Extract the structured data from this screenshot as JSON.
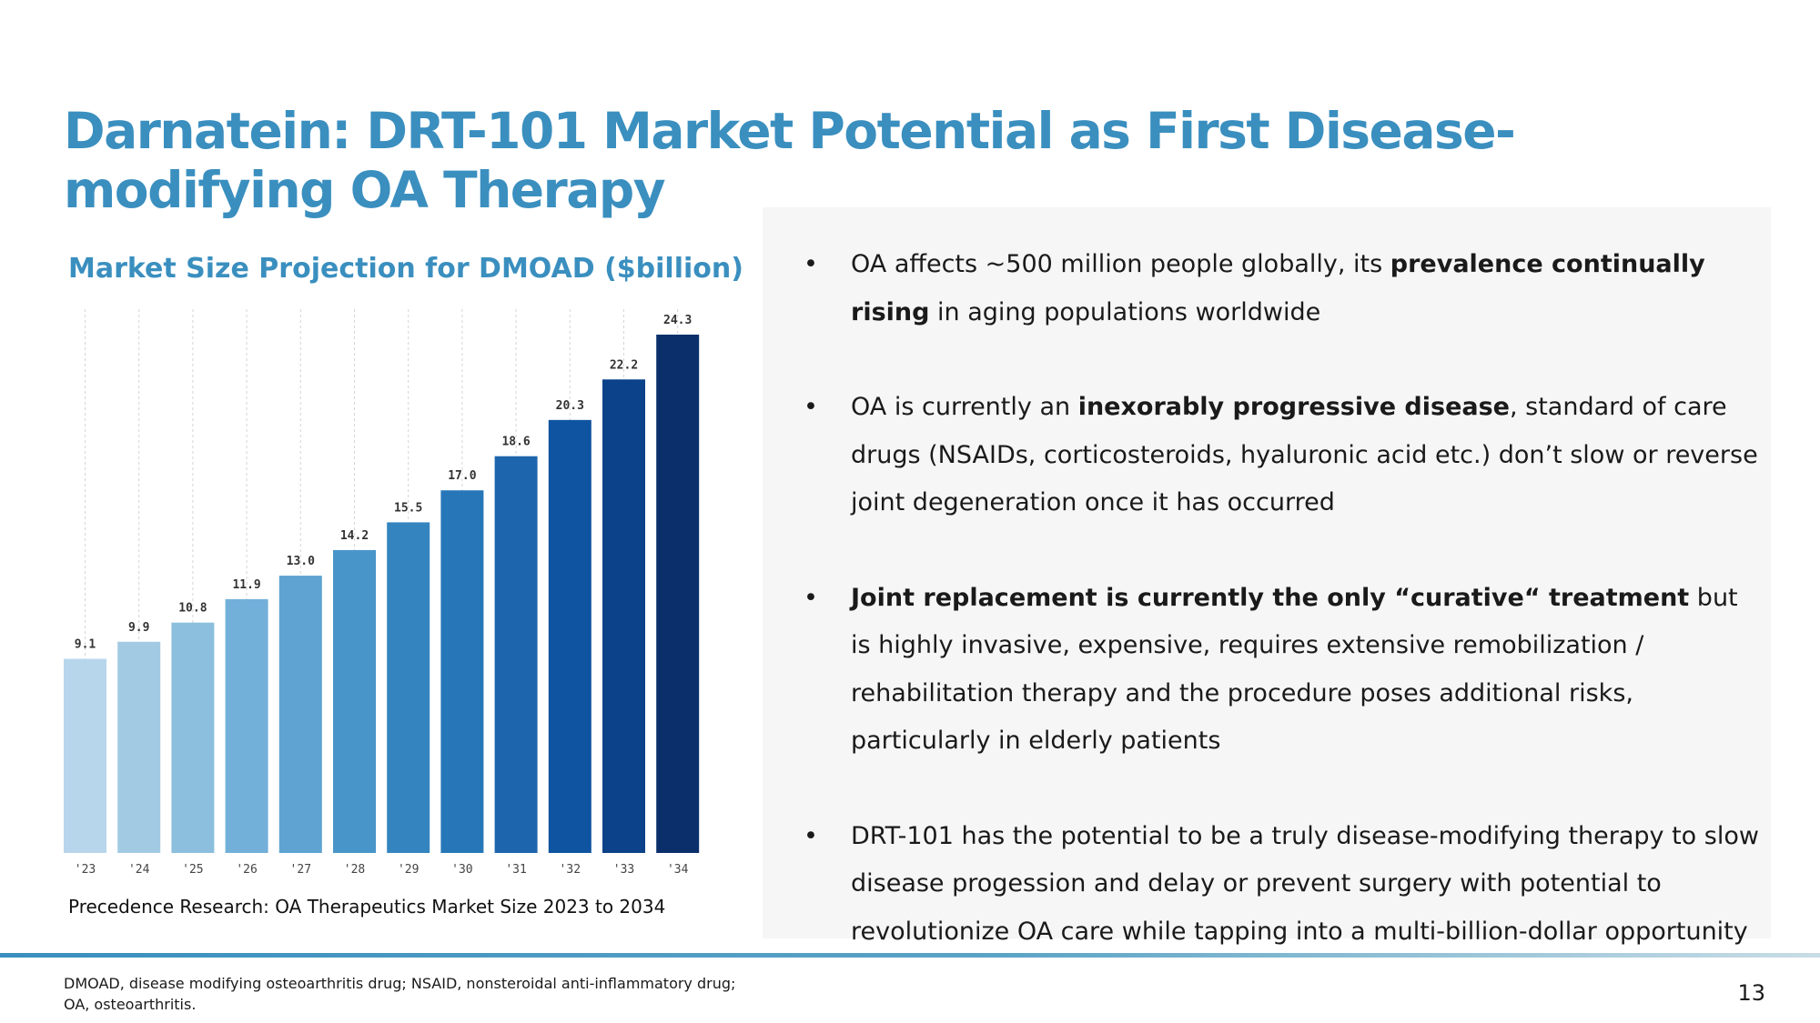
{
  "title": "Darnatein: DRT-101 Market Potential as First Disease-modifying OA Therapy",
  "chart_data": {
    "type": "bar",
    "title": "Market Size Projection for DMOAD ($billion)",
    "categories": [
      "'23",
      "'24",
      "'25",
      "'26",
      "'27",
      "'28",
      "'29",
      "'30",
      "'31",
      "'32",
      "'33",
      "'34"
    ],
    "values": [
      9.1,
      9.9,
      10.8,
      11.9,
      13.0,
      14.2,
      15.5,
      17.0,
      18.6,
      20.3,
      22.2,
      24.3
    ],
    "xlabel": "",
    "ylabel": "",
    "ylim": [
      0,
      24.3
    ],
    "grid": "vertical dashed",
    "colors": [
      "#b7d6ec",
      "#a2cbe3",
      "#8bbfdd",
      "#72b0d9",
      "#5ea3d1",
      "#4895c9",
      "#3485bf",
      "#2777b8",
      "#1d66ad",
      "#0f54a0",
      "#0b4289",
      "#0a2f6b"
    ]
  },
  "chart_source": "Precedence Research: OA Therapeutics Market Size 2023 to 2034",
  "bullets": [
    {
      "parts": [
        {
          "text": "OA affects ~500 million people globally, its ",
          "bold": false
        },
        {
          "text": "prevalence continually rising",
          "bold": true
        },
        {
          "text": " in aging populations worldwide",
          "bold": false
        }
      ]
    },
    {
      "parts": [
        {
          "text": "OA is currently an ",
          "bold": false
        },
        {
          "text": "inexorably progressive disease",
          "bold": true
        },
        {
          "text": ", standard of care drugs (NSAIDs, corticosteroids, hyaluronic acid etc.) don’t slow or reverse joint degeneration once it has occurred",
          "bold": false
        }
      ]
    },
    {
      "parts": [
        {
          "text": "Joint replacement is currently the only “curative“ treatment",
          "bold": true
        },
        {
          "text": " but is highly invasive, expensive, requires extensive remobilization / rehabilitation therapy and the procedure poses additional risks, particularly in elderly patients",
          "bold": false
        }
      ]
    },
    {
      "parts": [
        {
          "text": "DRT-101 has the potential to be a truly disease-modifying therapy to slow disease progession and delay or prevent surgery with potential to revolutionize OA care while tapping into a multi-billion-dollar opportunity",
          "bold": false
        }
      ]
    }
  ],
  "footnote": {
    "line1": "DMOAD, disease modifying osteoarthritis drug; NSAID, nonsteroidal anti-inflammatory drug;",
    "line2": "OA, osteoarthritis."
  },
  "page_number": "13",
  "colors": {
    "accent": "#3a8fbf",
    "panel_bg": "#f6f6f6"
  }
}
